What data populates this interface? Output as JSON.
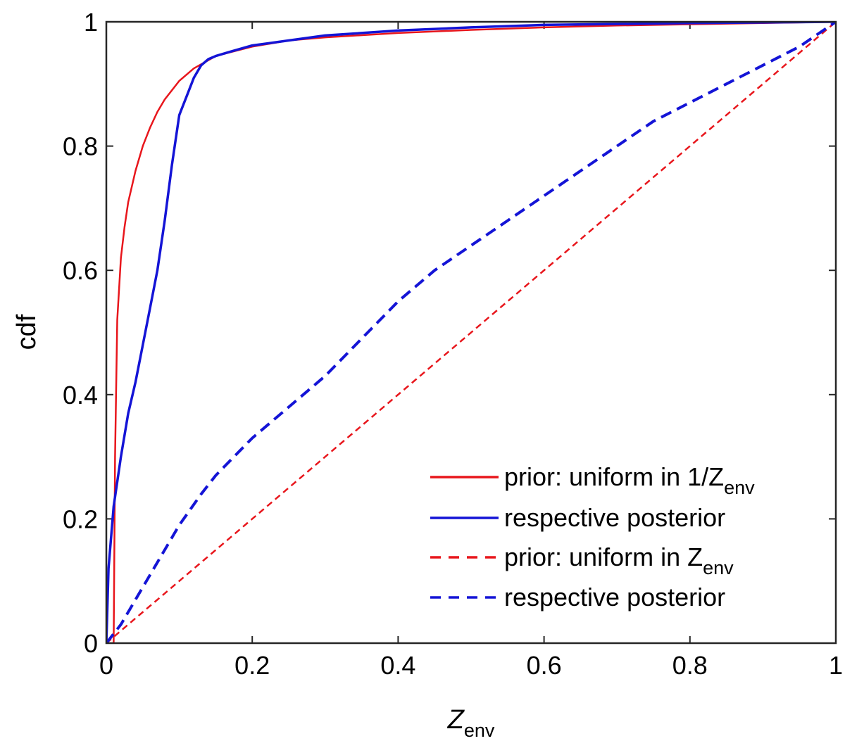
{
  "chart_data": {
    "type": "line",
    "xlabel": "Z",
    "xlabel_subscript": "env",
    "ylabel": "cdf",
    "xlim": [
      0,
      1
    ],
    "ylim": [
      0,
      1
    ],
    "x_ticks": [
      "0",
      "0.2",
      "0.4",
      "0.6",
      "0.8",
      "1"
    ],
    "y_ticks": [
      "0",
      "0.2",
      "0.4",
      "0.6",
      "0.8",
      "1"
    ],
    "grid": false,
    "legend_position": "bottom-right",
    "series": [
      {
        "name": "prior: uniform in 1/Z",
        "name_subscript": "env",
        "color": "#e8161c",
        "dash": "solid",
        "x": [
          0.0,
          0.01,
          0.012,
          0.015,
          0.02,
          0.025,
          0.03,
          0.04,
          0.05,
          0.06,
          0.07,
          0.08,
          0.1,
          0.12,
          0.15,
          0.2,
          0.25,
          0.3,
          0.4,
          0.5,
          0.6,
          0.7,
          0.8,
          0.9,
          1.0
        ],
        "y": [
          0.0,
          0.0,
          0.3,
          0.52,
          0.62,
          0.67,
          0.71,
          0.76,
          0.8,
          0.83,
          0.855,
          0.875,
          0.905,
          0.925,
          0.945,
          0.96,
          0.97,
          0.975,
          0.982,
          0.987,
          0.991,
          0.994,
          0.996,
          0.998,
          1.0
        ]
      },
      {
        "name": "respective posterior",
        "color": "#1414d6",
        "dash": "solid",
        "x": [
          0.0,
          0.003,
          0.01,
          0.02,
          0.03,
          0.04,
          0.05,
          0.06,
          0.07,
          0.08,
          0.09,
          0.1,
          0.11,
          0.12,
          0.13,
          0.14,
          0.15,
          0.17,
          0.2,
          0.25,
          0.3,
          0.4,
          0.5,
          0.6,
          0.8,
          1.0
        ],
        "y": [
          0.0,
          0.12,
          0.22,
          0.3,
          0.37,
          0.42,
          0.48,
          0.54,
          0.6,
          0.68,
          0.77,
          0.85,
          0.88,
          0.91,
          0.93,
          0.94,
          0.945,
          0.952,
          0.962,
          0.97,
          0.978,
          0.986,
          0.991,
          0.995,
          0.998,
          1.0
        ]
      },
      {
        "name": "prior: uniform in Z",
        "name_subscript": "env",
        "color": "#e8161c",
        "dash": "dashed",
        "x": [
          0.0,
          1.0
        ],
        "y": [
          0.0,
          1.0
        ]
      },
      {
        "name": "respective posterior",
        "color": "#1414d6",
        "dash": "dashed",
        "x": [
          0.0,
          0.02,
          0.05,
          0.08,
          0.1,
          0.13,
          0.15,
          0.2,
          0.25,
          0.3,
          0.35,
          0.4,
          0.45,
          0.5,
          0.55,
          0.6,
          0.65,
          0.7,
          0.75,
          0.8,
          0.85,
          0.9,
          0.95,
          1.0
        ],
        "y": [
          0.0,
          0.03,
          0.09,
          0.15,
          0.19,
          0.24,
          0.27,
          0.33,
          0.38,
          0.43,
          0.49,
          0.55,
          0.6,
          0.64,
          0.68,
          0.72,
          0.76,
          0.8,
          0.84,
          0.87,
          0.9,
          0.93,
          0.96,
          1.0
        ]
      }
    ]
  }
}
